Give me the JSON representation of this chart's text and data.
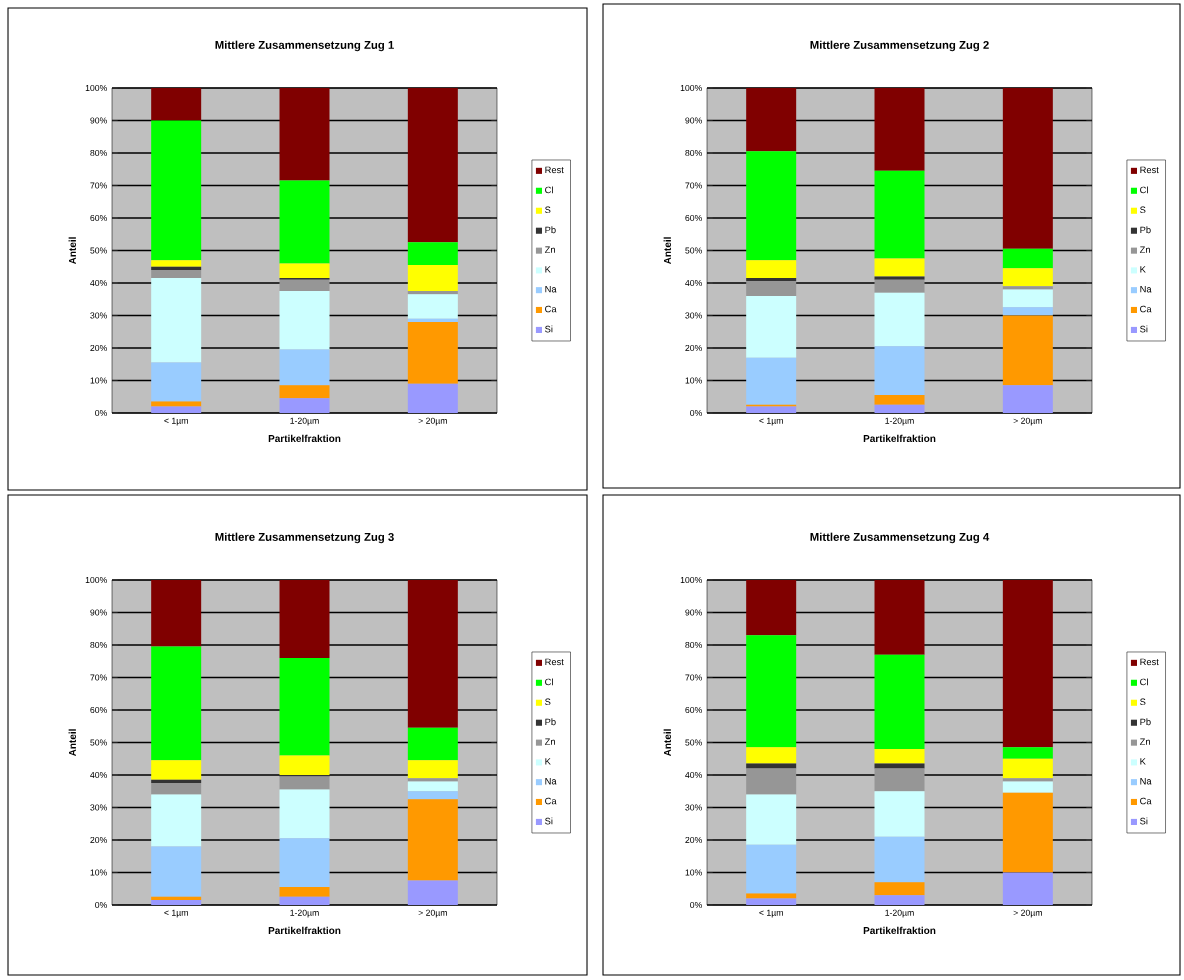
{
  "chart_data": [
    {
      "type": "bar",
      "stacked": true,
      "title": "Mittlere  Zusammensetzung Zug 1",
      "xlabel": "Partikelfraktion",
      "ylabel": "Anteil",
      "categories": [
        "< 1µm",
        "1-20µm",
        "> 20µm"
      ],
      "ylim": [
        0,
        100
      ],
      "yticks": [
        {
          "value": 0,
          "label": "0%"
        },
        {
          "value": 10,
          "label": "10%"
        },
        {
          "value": 20,
          "label": "20%"
        },
        {
          "value": 30,
          "label": "30%"
        },
        {
          "value": 40,
          "label": "40%"
        },
        {
          "value": 50,
          "label": "50%"
        },
        {
          "value": 60,
          "label": "60%"
        },
        {
          "value": 70,
          "label": "70%"
        },
        {
          "value": 80,
          "label": "80%"
        },
        {
          "value": 90,
          "label": "90%"
        },
        {
          "value": 100,
          "label": "100%"
        }
      ],
      "grid": "y",
      "legend": "right",
      "series": [
        {
          "name": "Si",
          "color": "#9999ff",
          "values": [
            2,
            4.5,
            9
          ]
        },
        {
          "name": "Ca",
          "color": "#ff9900",
          "values": [
            1.5,
            4,
            19
          ]
        },
        {
          "name": "Na",
          "color": "#99ccff",
          "values": [
            12,
            11,
            1
          ]
        },
        {
          "name": "K",
          "color": "#ccffff",
          "values": [
            26,
            18,
            7.5
          ]
        },
        {
          "name": "Zn",
          "color": "#969696",
          "values": [
            2.5,
            3.5,
            1
          ]
        },
        {
          "name": "Pb",
          "color": "#333333",
          "values": [
            1,
            0.5,
            0
          ]
        },
        {
          "name": "S",
          "color": "#ffff00",
          "values": [
            2,
            4.5,
            8
          ]
        },
        {
          "name": "Cl",
          "color": "#00ff00",
          "values": [
            43,
            25.5,
            7
          ]
        },
        {
          "name": "Rest",
          "color": "#800000",
          "values": [
            10,
            28.5,
            47.5
          ]
        }
      ]
    },
    {
      "type": "bar",
      "stacked": true,
      "title": "Mittlere  Zusammensetzung Zug 2",
      "xlabel": "Partikelfraktion",
      "ylabel": "Anteil",
      "categories": [
        "< 1µm",
        "1-20µm",
        "> 20µm"
      ],
      "ylim": [
        0,
        100
      ],
      "yticks": [
        {
          "value": 0,
          "label": "0%"
        },
        {
          "value": 10,
          "label": "10%"
        },
        {
          "value": 20,
          "label": "20%"
        },
        {
          "value": 30,
          "label": "30%"
        },
        {
          "value": 40,
          "label": "40%"
        },
        {
          "value": 50,
          "label": "50%"
        },
        {
          "value": 60,
          "label": "60%"
        },
        {
          "value": 70,
          "label": "70%"
        },
        {
          "value": 80,
          "label": "80%"
        },
        {
          "value": 90,
          "label": "90%"
        },
        {
          "value": 100,
          "label": "100%"
        }
      ],
      "grid": "y",
      "legend": "right",
      "series": [
        {
          "name": "Si",
          "color": "#9999ff",
          "values": [
            2,
            2.5,
            8.5
          ]
        },
        {
          "name": "Ca",
          "color": "#ff9900",
          "values": [
            0.5,
            3,
            21.5
          ]
        },
        {
          "name": "Na",
          "color": "#99ccff",
          "values": [
            14.5,
            15,
            2.5
          ]
        },
        {
          "name": "K",
          "color": "#ccffff",
          "values": [
            19,
            16.5,
            5.5
          ]
        },
        {
          "name": "Zn",
          "color": "#969696",
          "values": [
            4.5,
            4,
            1
          ]
        },
        {
          "name": "Pb",
          "color": "#333333",
          "values": [
            1,
            1,
            0
          ]
        },
        {
          "name": "S",
          "color": "#ffff00",
          "values": [
            5.5,
            5.5,
            5.5
          ]
        },
        {
          "name": "Cl",
          "color": "#00ff00",
          "values": [
            33.5,
            27,
            6
          ]
        },
        {
          "name": "Rest",
          "color": "#800000",
          "values": [
            19.5,
            25.5,
            49.5
          ]
        }
      ]
    },
    {
      "type": "bar",
      "stacked": true,
      "title": "Mittlere  Zusammensetzung Zug 3",
      "xlabel": "Partikelfraktion",
      "ylabel": "Anteil",
      "categories": [
        "< 1µm",
        "1-20µm",
        "> 20µm"
      ],
      "ylim": [
        0,
        100
      ],
      "yticks": [
        {
          "value": 0,
          "label": "0%"
        },
        {
          "value": 10,
          "label": "10%"
        },
        {
          "value": 20,
          "label": "20%"
        },
        {
          "value": 30,
          "label": "30%"
        },
        {
          "value": 40,
          "label": "40%"
        },
        {
          "value": 50,
          "label": "50%"
        },
        {
          "value": 60,
          "label": "60%"
        },
        {
          "value": 70,
          "label": "70%"
        },
        {
          "value": 80,
          "label": "80%"
        },
        {
          "value": 90,
          "label": "90%"
        },
        {
          "value": 100,
          "label": "100%"
        }
      ],
      "grid": "y",
      "legend": "right",
      "series": [
        {
          "name": "Si",
          "color": "#9999ff",
          "values": [
            1.5,
            2.5,
            7.5
          ]
        },
        {
          "name": "Ca",
          "color": "#ff9900",
          "values": [
            1,
            3,
            25
          ]
        },
        {
          "name": "Na",
          "color": "#99ccff",
          "values": [
            15.5,
            15,
            2.5
          ]
        },
        {
          "name": "K",
          "color": "#ccffff",
          "values": [
            16,
            15,
            3
          ]
        },
        {
          "name": "Zn",
          "color": "#969696",
          "values": [
            3.5,
            4,
            1
          ]
        },
        {
          "name": "Pb",
          "color": "#333333",
          "values": [
            1,
            0.5,
            0
          ]
        },
        {
          "name": "S",
          "color": "#ffff00",
          "values": [
            6,
            6,
            5.5
          ]
        },
        {
          "name": "Cl",
          "color": "#00ff00",
          "values": [
            35,
            30,
            10
          ]
        },
        {
          "name": "Rest",
          "color": "#800000",
          "values": [
            20.5,
            24,
            45.5
          ]
        }
      ]
    },
    {
      "type": "bar",
      "stacked": true,
      "title": "Mittlere  Zusammensetzung Zug 4",
      "xlabel": "Partikelfraktion",
      "ylabel": "Anteil",
      "categories": [
        "< 1µm",
        "1-20µm",
        "> 20µm"
      ],
      "ylim": [
        0,
        100
      ],
      "yticks": [
        {
          "value": 0,
          "label": "0%"
        },
        {
          "value": 10,
          "label": "10%"
        },
        {
          "value": 20,
          "label": "20%"
        },
        {
          "value": 30,
          "label": "30%"
        },
        {
          "value": 40,
          "label": "40%"
        },
        {
          "value": 50,
          "label": "50%"
        },
        {
          "value": 60,
          "label": "60%"
        },
        {
          "value": 70,
          "label": "70%"
        },
        {
          "value": 80,
          "label": "80%"
        },
        {
          "value": 90,
          "label": "90%"
        },
        {
          "value": 100,
          "label": "100%"
        }
      ],
      "grid": "y",
      "legend": "right",
      "series": [
        {
          "name": "Si",
          "color": "#9999ff",
          "values": [
            2,
            3,
            10
          ]
        },
        {
          "name": "Ca",
          "color": "#ff9900",
          "values": [
            1.5,
            4,
            24.5
          ]
        },
        {
          "name": "Na",
          "color": "#99ccff",
          "values": [
            15,
            14,
            0
          ]
        },
        {
          "name": "K",
          "color": "#ccffff",
          "values": [
            15.5,
            14,
            3.5
          ]
        },
        {
          "name": "Zn",
          "color": "#969696",
          "values": [
            8,
            7,
            1
          ]
        },
        {
          "name": "Pb",
          "color": "#333333",
          "values": [
            1.5,
            1.5,
            0
          ]
        },
        {
          "name": "S",
          "color": "#ffff00",
          "values": [
            5,
            4.5,
            6
          ]
        },
        {
          "name": "Cl",
          "color": "#00ff00",
          "values": [
            34.5,
            29,
            3.5
          ]
        },
        {
          "name": "Rest",
          "color": "#800000",
          "values": [
            17,
            23,
            51.5
          ]
        }
      ]
    }
  ]
}
